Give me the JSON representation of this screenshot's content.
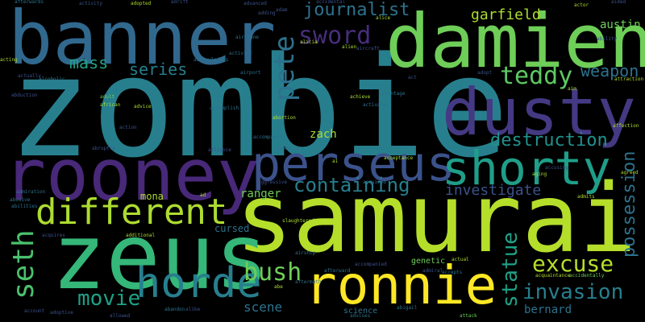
{
  "words": {
    "zombie": "zombie",
    "samurai": "samurai",
    "damien": "damien",
    "banner": "banner",
    "rooney": "rooney",
    "dusty": "dusty",
    "zeus": "zeus",
    "ronnie": "ronnie",
    "perseus": "perseus",
    "shorty": "shorty",
    "horde": "horde",
    "different": "different",
    "sword": "sword",
    "pete": "pete",
    "teddy": "teddy",
    "journalist": "journalist",
    "containing": "containing",
    "destruction": "destruction",
    "invasion": "invasion",
    "movie": "movie",
    "excuse": "excuse",
    "seth": "seth",
    "bush": "bush",
    "series": "series",
    "mass": "mass",
    "weapon": "weapon",
    "garfield": "garfield",
    "statue": "statue",
    "possession": "possession",
    "investigate": "investigate",
    "austin": "austin",
    "zach": "zach",
    "scene": "scene",
    "ranger": "ranger",
    "mona": "mona",
    "cursed": "cursed",
    "bernard": "bernard",
    "science": "science",
    "genetic": "genetic",
    "adult": "adult",
    "accidentally": "accidentally",
    "action": "action",
    "abortion": "abortion",
    "airport": "airport",
    "airplane": "airplane",
    "admiral": "admiral",
    "activist": "activist",
    "advantage": "advantage",
    "slaughtered": "slaughtered",
    "actual": "actual",
    "acquires": "acquires",
    "aging": "aging",
    "adopt": "adopt",
    "advises": "advises",
    "abigail": "abigail",
    "attack": "attack",
    "abilities": "abilities",
    "acceptance": "acceptance",
    "african": "african",
    "actor": "actor",
    "adopted": "adopted",
    "activity": "activity",
    "advanced": "advanced",
    "alien": "alien",
    "alice": "alice",
    "advice": "advice",
    "account": "account",
    "allowed": "allowed",
    "abandon": "abandon",
    "alike": "alike",
    "admits": "admits",
    "agreed": "agreed",
    "afterward": "afterward",
    "accepts": "accepts",
    "adoptive": "adoptive",
    "additional": "additional",
    "alliance": "alliance",
    "ad": "ad",
    "aircraft": "aircraft",
    "adding": "adding",
    "actually": "actually",
    "accusing": "accusing",
    "acting": "acting",
    "abruptly": "abruptly",
    "achieve": "achieve",
    "activates": "activates",
    "attraction": "attraction",
    "abduction": "abduction",
    "aided": "aided",
    "alcoholic": "alcoholic",
    "aggressive": "aggressive",
    "abusive": "abusive",
    "admiration": "admiration",
    "afterwards": "afterwards",
    "aftermath": "aftermath",
    "adrift": "adrift",
    "aim": "aim",
    "abducts": "abducts",
    "airship": "airship",
    "affection": "affection",
    "ability": "ability",
    "alicia": "alicia",
    "accomplish": "accomplish",
    "acknowledges": "acknowledges",
    "acquaintance": "acquaintance",
    "accompanied": "accompanied",
    "accompanies": "accompanies",
    "accidental": "accidental",
    "acquired": "acquired",
    "adam": "adam",
    "ai": "ai",
    "act": "act",
    "abe": "abe"
  },
  "colors": {
    "teal": "#277f8e",
    "lime": "#a0da39",
    "green": "#4ac16d",
    "blue": "#365c8d",
    "indigo": "#46327e",
    "yellow": "#fde725",
    "navy": "#3b528b",
    "cyan": "#1fa187"
  }
}
